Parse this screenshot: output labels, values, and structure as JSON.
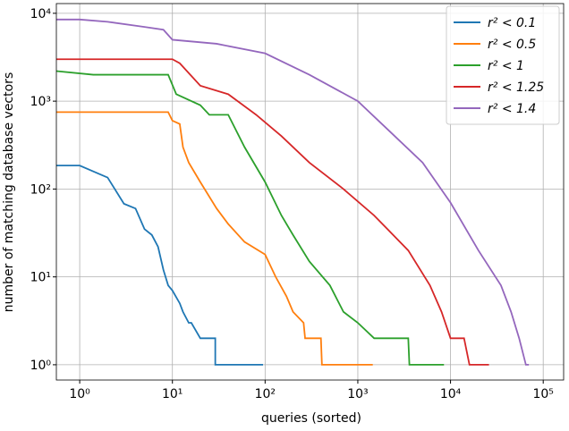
{
  "chart_data": {
    "type": "line",
    "x_label": "queries (sorted)",
    "y_label": "number of matching database vectors",
    "log_x": true,
    "log_y": true,
    "grid": true,
    "legend": "upper right",
    "xlim": [
      0.56,
      166000
    ],
    "ylim": [
      0.67,
      12900
    ],
    "xticks": [
      {
        "value": 1,
        "label": "10⁰"
      },
      {
        "value": 10,
        "label": "10¹"
      },
      {
        "value": 100,
        "label": "10²"
      },
      {
        "value": 1000,
        "label": "10³"
      },
      {
        "value": 10000,
        "label": "10⁴"
      },
      {
        "value": 100000,
        "label": "10⁵"
      }
    ],
    "yticks": [
      {
        "value": 1,
        "label": "10⁰"
      },
      {
        "value": 10,
        "label": "10¹"
      },
      {
        "value": 100,
        "label": "10²"
      },
      {
        "value": 1000,
        "label": "10³"
      },
      {
        "value": 10000,
        "label": "10⁴"
      }
    ],
    "series": [
      {
        "name": "r² < 0.1",
        "color": "#1f77b4",
        "x": [
          0.56,
          1,
          2,
          3,
          4,
          5,
          6,
          7,
          8,
          9,
          10,
          12,
          13,
          15,
          16,
          20,
          29,
          29,
          95
        ],
        "values": [
          185,
          185,
          135,
          68,
          60,
          35,
          30,
          22,
          12,
          8,
          7,
          5,
          4,
          3,
          3,
          2,
          2,
          1,
          1
        ]
      },
      {
        "name": "r² < 0.5",
        "color": "#ff7f0e",
        "x": [
          0.56,
          9,
          10,
          12,
          13,
          15,
          20,
          30,
          40,
          60,
          100,
          130,
          170,
          200,
          260,
          270,
          400,
          410,
          1450
        ],
        "values": [
          750,
          750,
          600,
          550,
          300,
          200,
          120,
          60,
          40,
          25,
          18,
          10,
          6,
          4,
          3,
          2,
          2,
          1,
          1
        ]
      },
      {
        "name": "r² < 1",
        "color": "#2ca02c",
        "x": [
          0.56,
          1.4,
          9,
          11,
          20,
          25,
          40,
          60,
          100,
          150,
          200,
          300,
          500,
          700,
          1000,
          1500,
          3500,
          3600,
          8500
        ],
        "values": [
          2200,
          2000,
          2000,
          1200,
          900,
          700,
          700,
          300,
          120,
          50,
          30,
          15,
          8,
          4,
          3,
          2,
          2,
          1,
          1
        ]
      },
      {
        "name": "r² < 1.25",
        "color": "#d62728",
        "x": [
          0.56,
          10,
          12,
          20,
          40,
          80,
          150,
          300,
          700,
          1500,
          3500,
          6000,
          8000,
          10000,
          14000,
          16000,
          26000
        ],
        "values": [
          3000,
          3000,
          2700,
          1500,
          1200,
          700,
          400,
          200,
          100,
          50,
          20,
          8,
          4,
          2,
          2,
          1,
          1
        ]
      },
      {
        "name": "r² < 1.4",
        "color": "#9467bd",
        "x": [
          0.56,
          1,
          2,
          5,
          8,
          10,
          30,
          100,
          300,
          1000,
          2000,
          5000,
          10000,
          20000,
          35000,
          45000,
          55000,
          65000,
          70000
        ],
        "values": [
          8500,
          8500,
          8000,
          7000,
          6500,
          5000,
          4500,
          3500,
          2000,
          1000,
          500,
          200,
          70,
          20,
          8,
          4,
          2,
          1,
          1
        ]
      }
    ]
  }
}
